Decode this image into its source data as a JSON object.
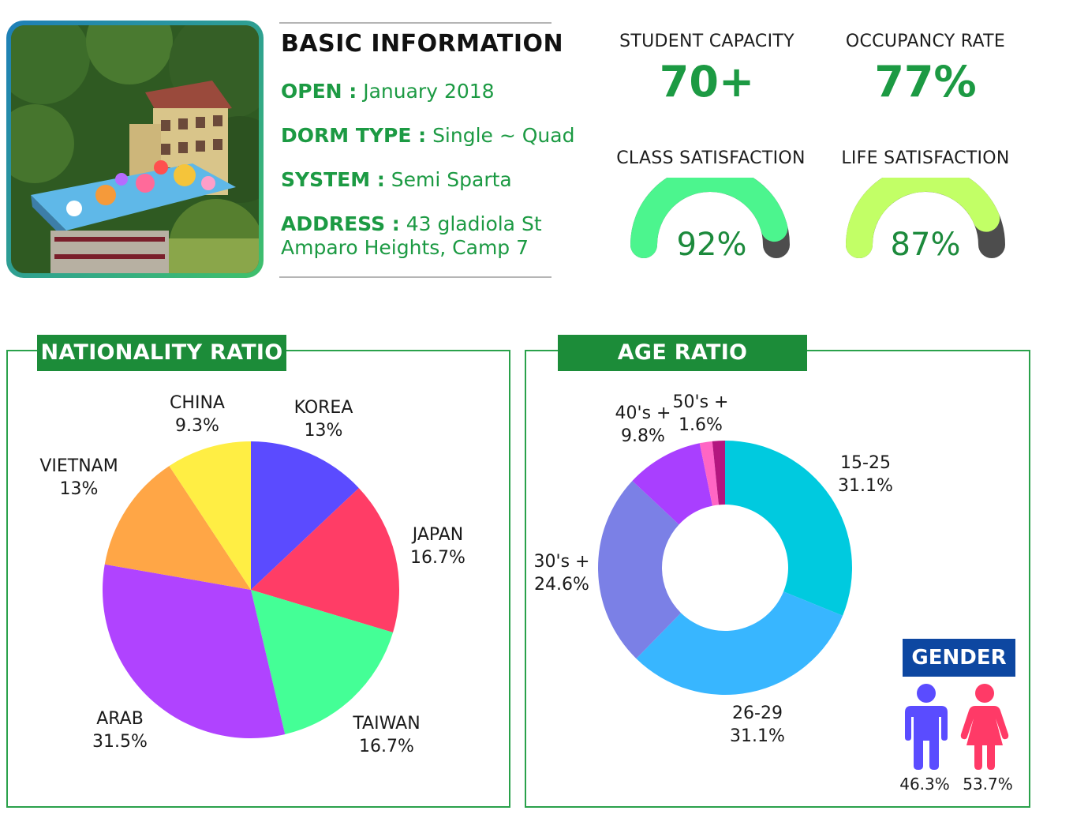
{
  "basic_info": {
    "title": "BASIC INFORMATION",
    "rows": [
      {
        "key": "OPEN :",
        "value": "January 2018"
      },
      {
        "key": "DORM TYPE :",
        "value": "Single ~ Quad"
      },
      {
        "key": "SYSTEM :",
        "value": "Semi Sparta"
      },
      {
        "key": "ADDRESS :",
        "value": "43 gladiola St",
        "value2": "Amparo Heights, Camp 7"
      }
    ]
  },
  "stats": {
    "student_capacity": {
      "label": "STUDENT CAPACITY",
      "value": "70+"
    },
    "occupancy_rate": {
      "label": "OCCUPANCY RATE",
      "value": "77%"
    },
    "class_satisfaction": {
      "label": "CLASS SATISFACTION",
      "value": "92%",
      "percent": 92,
      "color": "#4cf58e"
    },
    "life_satisfaction": {
      "label": "LIFE SATISFACTION",
      "value": "87%",
      "percent": 87,
      "color": "#c2ff66"
    }
  },
  "chart_data": [
    {
      "type": "pie",
      "title": "NATIONALITY RATIO",
      "slices": [
        {
          "label": "KOREA",
          "value": 13,
          "text": "13%",
          "color": "#5b4bff"
        },
        {
          "label": "JAPAN",
          "value": 16.7,
          "text": "16.7%",
          "color": "#ff3d66"
        },
        {
          "label": "TAIWAN",
          "value": 16.7,
          "text": "16.7%",
          "color": "#44ff96"
        },
        {
          "label": "ARAB",
          "value": 31.5,
          "text": "31.5%",
          "color": "#b043ff"
        },
        {
          "label": "VIETNAM",
          "value": 13,
          "text": "13%",
          "color": "#ffa646"
        },
        {
          "label": "CHINA",
          "value": 9.3,
          "text": "9.3%",
          "color": "#ffee44"
        }
      ]
    },
    {
      "type": "pie",
      "title": "AGE RATIO",
      "donut": true,
      "slices": [
        {
          "label": "15-25",
          "value": 31.1,
          "text": "31.1%",
          "color": "#00cadf"
        },
        {
          "label": "26-29",
          "value": 31.1,
          "text": "31.1%",
          "color": "#38b6ff"
        },
        {
          "label": "30's +",
          "value": 24.6,
          "text": "24.6%",
          "color": "#7b80e6"
        },
        {
          "label": "40's +",
          "value": 9.8,
          "text": "9.8%",
          "color": "#a93fff"
        },
        {
          "label": "50's +",
          "value": 1.6,
          "text": "1.6%",
          "color": "#ff66c4"
        },
        {
          "label": "",
          "value": 1.6,
          "text": "",
          "color": "#b3167f"
        }
      ]
    }
  ],
  "gender": {
    "title": "GENDER",
    "male": {
      "text": "46.3%",
      "color": "#5a4cff",
      "icon": "male-person-icon"
    },
    "female": {
      "text": "53.7%",
      "color": "#ff3a67",
      "icon": "female-person-icon"
    }
  }
}
